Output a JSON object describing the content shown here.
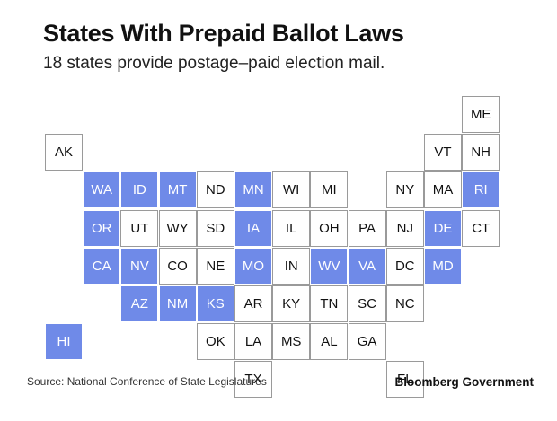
{
  "header": {
    "title": "States With Prepaid Ballot Laws",
    "subtitle": "18 states provide postage–paid election mail."
  },
  "colors": {
    "prepaid": "#6f8ae8",
    "other": "#ffffff",
    "border": "#9a9a9a"
  },
  "states": [
    {
      "abbr": "ME",
      "row": 0,
      "col": 11,
      "prepaid": false
    },
    {
      "abbr": "AK",
      "row": 1,
      "col": 0,
      "prepaid": false
    },
    {
      "abbr": "VT",
      "row": 1,
      "col": 10,
      "prepaid": false
    },
    {
      "abbr": "NH",
      "row": 1,
      "col": 11,
      "prepaid": false
    },
    {
      "abbr": "WA",
      "row": 2,
      "col": 1,
      "prepaid": true
    },
    {
      "abbr": "ID",
      "row": 2,
      "col": 2,
      "prepaid": true
    },
    {
      "abbr": "MT",
      "row": 2,
      "col": 3,
      "prepaid": true
    },
    {
      "abbr": "ND",
      "row": 2,
      "col": 4,
      "prepaid": false
    },
    {
      "abbr": "MN",
      "row": 2,
      "col": 5,
      "prepaid": true
    },
    {
      "abbr": "WI",
      "row": 2,
      "col": 6,
      "prepaid": false
    },
    {
      "abbr": "MI",
      "row": 2,
      "col": 7,
      "prepaid": false
    },
    {
      "abbr": "NY",
      "row": 2,
      "col": 9,
      "prepaid": false
    },
    {
      "abbr": "MA",
      "row": 2,
      "col": 10,
      "prepaid": false
    },
    {
      "abbr": "RI",
      "row": 2,
      "col": 11,
      "prepaid": true
    },
    {
      "abbr": "OR",
      "row": 3,
      "col": 1,
      "prepaid": true
    },
    {
      "abbr": "UT",
      "row": 3,
      "col": 2,
      "prepaid": false
    },
    {
      "abbr": "WY",
      "row": 3,
      "col": 3,
      "prepaid": false
    },
    {
      "abbr": "SD",
      "row": 3,
      "col": 4,
      "prepaid": false
    },
    {
      "abbr": "IA",
      "row": 3,
      "col": 5,
      "prepaid": true
    },
    {
      "abbr": "IL",
      "row": 3,
      "col": 6,
      "prepaid": false
    },
    {
      "abbr": "OH",
      "row": 3,
      "col": 7,
      "prepaid": false
    },
    {
      "abbr": "PA",
      "row": 3,
      "col": 8,
      "prepaid": false
    },
    {
      "abbr": "NJ",
      "row": 3,
      "col": 9,
      "prepaid": false
    },
    {
      "abbr": "DE",
      "row": 3,
      "col": 10,
      "prepaid": true
    },
    {
      "abbr": "CT",
      "row": 3,
      "col": 11,
      "prepaid": false
    },
    {
      "abbr": "CA",
      "row": 4,
      "col": 1,
      "prepaid": true
    },
    {
      "abbr": "NV",
      "row": 4,
      "col": 2,
      "prepaid": true
    },
    {
      "abbr": "CO",
      "row": 4,
      "col": 3,
      "prepaid": false
    },
    {
      "abbr": "NE",
      "row": 4,
      "col": 4,
      "prepaid": false
    },
    {
      "abbr": "MO",
      "row": 4,
      "col": 5,
      "prepaid": true
    },
    {
      "abbr": "IN",
      "row": 4,
      "col": 6,
      "prepaid": false
    },
    {
      "abbr": "WV",
      "row": 4,
      "col": 7,
      "prepaid": true
    },
    {
      "abbr": "VA",
      "row": 4,
      "col": 8,
      "prepaid": true
    },
    {
      "abbr": "DC",
      "row": 4,
      "col": 9,
      "prepaid": false
    },
    {
      "abbr": "MD",
      "row": 4,
      "col": 10,
      "prepaid": true
    },
    {
      "abbr": "AZ",
      "row": 5,
      "col": 2,
      "prepaid": true
    },
    {
      "abbr": "NM",
      "row": 5,
      "col": 3,
      "prepaid": true
    },
    {
      "abbr": "KS",
      "row": 5,
      "col": 4,
      "prepaid": true
    },
    {
      "abbr": "AR",
      "row": 5,
      "col": 5,
      "prepaid": false
    },
    {
      "abbr": "KY",
      "row": 5,
      "col": 6,
      "prepaid": false
    },
    {
      "abbr": "TN",
      "row": 5,
      "col": 7,
      "prepaid": false
    },
    {
      "abbr": "SC",
      "row": 5,
      "col": 8,
      "prepaid": false
    },
    {
      "abbr": "NC",
      "row": 5,
      "col": 9,
      "prepaid": false
    },
    {
      "abbr": "HI",
      "row": 6,
      "col": 0,
      "prepaid": true
    },
    {
      "abbr": "OK",
      "row": 6,
      "col": 4,
      "prepaid": false
    },
    {
      "abbr": "LA",
      "row": 6,
      "col": 5,
      "prepaid": false
    },
    {
      "abbr": "MS",
      "row": 6,
      "col": 6,
      "prepaid": false
    },
    {
      "abbr": "AL",
      "row": 6,
      "col": 7,
      "prepaid": false
    },
    {
      "abbr": "GA",
      "row": 6,
      "col": 8,
      "prepaid": false
    },
    {
      "abbr": "TX",
      "row": 7,
      "col": 5,
      "prepaid": false
    },
    {
      "abbr": "FL",
      "row": 7,
      "col": 9,
      "prepaid": false
    }
  ],
  "footer": {
    "source": "Source: National Conference of State Legislatures",
    "brand": "Bloomberg Government"
  }
}
